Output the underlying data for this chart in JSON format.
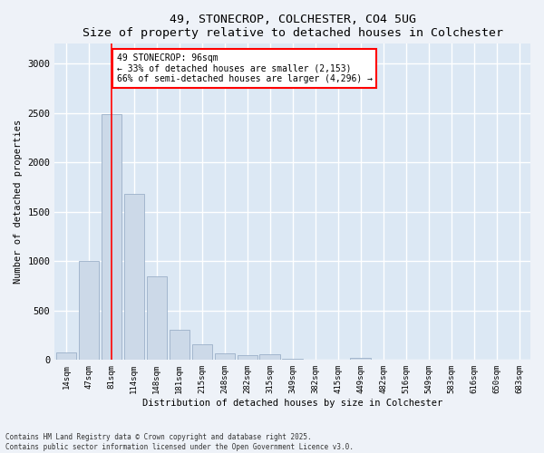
{
  "title1": "49, STONECROP, COLCHESTER, CO4 5UG",
  "title2": "Size of property relative to detached houses in Colchester",
  "xlabel": "Distribution of detached houses by size in Colchester",
  "ylabel": "Number of detached properties",
  "categories": [
    "14sqm",
    "47sqm",
    "81sqm",
    "114sqm",
    "148sqm",
    "181sqm",
    "215sqm",
    "248sqm",
    "282sqm",
    "315sqm",
    "349sqm",
    "382sqm",
    "415sqm",
    "449sqm",
    "482sqm",
    "516sqm",
    "549sqm",
    "583sqm",
    "616sqm",
    "650sqm",
    "683sqm"
  ],
  "values": [
    80,
    1000,
    2490,
    1680,
    850,
    310,
    155,
    70,
    50,
    60,
    10,
    0,
    0,
    20,
    0,
    0,
    0,
    0,
    0,
    0,
    0
  ],
  "bar_color": "#ccd9e8",
  "bar_edge_color": "#9bb0c8",
  "vline_x": 2.0,
  "vline_color": "red",
  "annotation_text": "49 STONECROP: 96sqm\n← 33% of detached houses are smaller (2,153)\n66% of semi-detached houses are larger (4,296) →",
  "ylim": [
    0,
    3200
  ],
  "yticks": [
    0,
    500,
    1000,
    1500,
    2000,
    2500,
    3000
  ],
  "footer1": "Contains HM Land Registry data © Crown copyright and database right 2025.",
  "footer2": "Contains public sector information licensed under the Open Government Licence v3.0.",
  "fig_bg": "#eef2f8",
  "plot_bg": "#dce8f4"
}
